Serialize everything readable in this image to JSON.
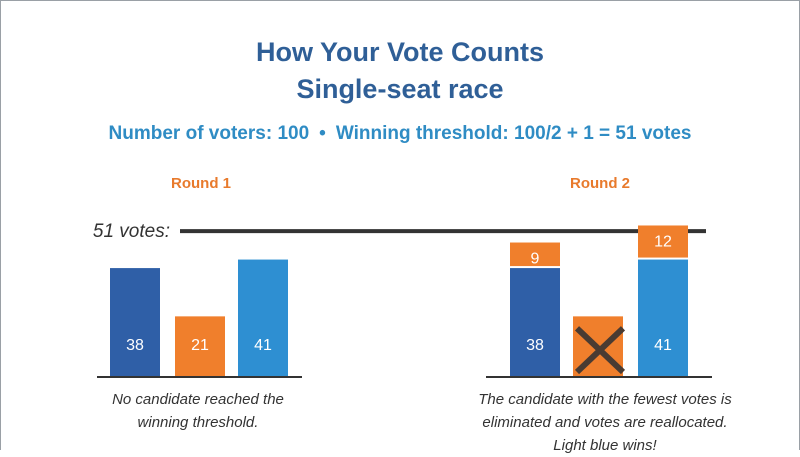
{
  "title_line1": "How Your Vote Counts",
  "title_line2": "Single-seat race",
  "subtitle": {
    "voters": "Number of voters: 100",
    "bullet": "•",
    "threshold": "Winning threshold: 100/2 + 1 = 51 votes"
  },
  "threshold_label": "51 votes:",
  "captions": {
    "round1": "No candidate reached the winning threshold.",
    "round2": "The candidate with the fewest votes is eliminated and votes are reallocated. Light blue wins!"
  },
  "colors": {
    "title": "#2f5f97",
    "subtitle": "#2f8cc4",
    "round_label": "#e87a2c",
    "dark_blue": "#2f5fa7",
    "orange": "#f07f2c",
    "light_blue": "#2e8fd2",
    "threshold_line": "#333333",
    "cross": "#4a3b32"
  },
  "chart_data": {
    "type": "bar",
    "threshold": 51,
    "ylim": [
      0,
      60
    ],
    "rounds": [
      {
        "label": "Round 1",
        "bars": [
          {
            "candidate": "dark-blue",
            "color": "#2f5fa7",
            "segments": [
              {
                "value": 38,
                "color": "#2f5fa7",
                "label": "38"
              }
            ]
          },
          {
            "candidate": "orange",
            "color": "#f07f2c",
            "segments": [
              {
                "value": 21,
                "color": "#f07f2c",
                "label": "21"
              }
            ]
          },
          {
            "candidate": "light-blue",
            "color": "#2e8fd2",
            "segments": [
              {
                "value": 41,
                "color": "#2e8fd2",
                "label": "41"
              }
            ]
          }
        ]
      },
      {
        "label": "Round 2",
        "bars": [
          {
            "candidate": "dark-blue",
            "color": "#2f5fa7",
            "segments": [
              {
                "value": 38,
                "color": "#2f5fa7",
                "label": "38"
              },
              {
                "value": 9,
                "color": "#f07f2c",
                "label": "9"
              }
            ]
          },
          {
            "candidate": "orange",
            "color": "#f07f2c",
            "eliminated": true,
            "segments": [
              {
                "value": 21,
                "color": "#f07f2c",
                "label": ""
              }
            ]
          },
          {
            "candidate": "light-blue",
            "color": "#2e8fd2",
            "segments": [
              {
                "value": 41,
                "color": "#2e8fd2",
                "label": "41"
              },
              {
                "value": 12,
                "color": "#f07f2c",
                "label": "12"
              }
            ]
          }
        ]
      }
    ]
  }
}
